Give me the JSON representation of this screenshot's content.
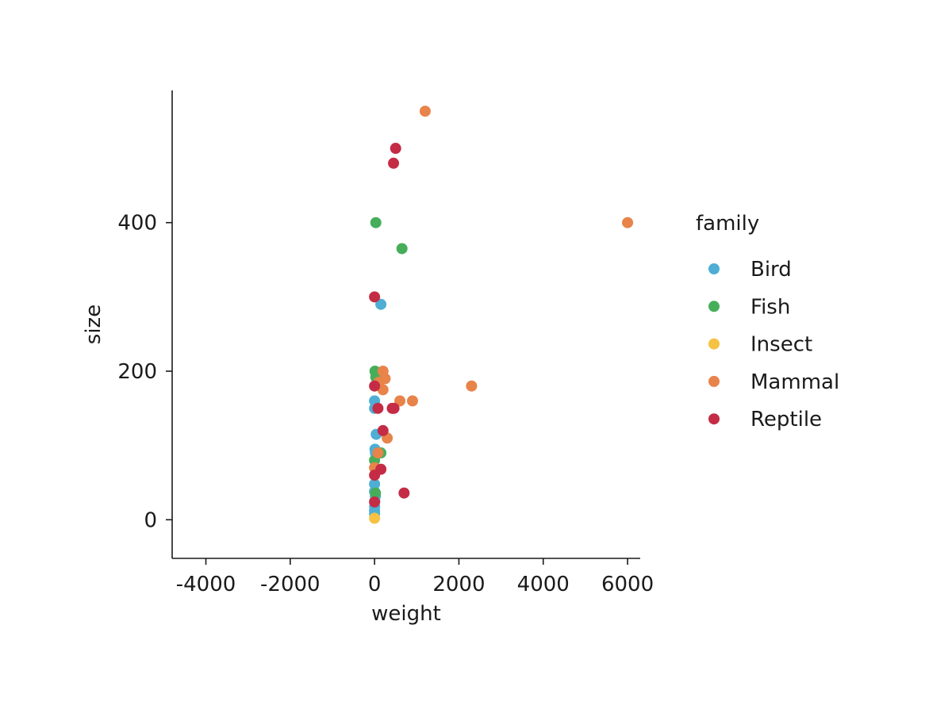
{
  "chart_data": {
    "type": "scatter",
    "title": "",
    "xlabel": "weight",
    "ylabel": "size",
    "xlim": [
      -4800,
      6300
    ],
    "ylim": [
      -52,
      578
    ],
    "xticks": [
      -4000,
      -2000,
      0,
      2000,
      4000,
      6000
    ],
    "xtick_labels": [
      "-4000",
      "-2000",
      "0",
      "2000",
      "4000",
      "6000"
    ],
    "yticks": [
      0,
      200,
      400
    ],
    "ytick_labels": [
      "0",
      "200",
      "400"
    ],
    "grid": false,
    "legend_position": "right",
    "legend_title": "family",
    "series": [
      {
        "name": "Bird",
        "color": "#4eaed4",
        "points": [
          {
            "x": 150,
            "y": 290
          },
          {
            "x": 0,
            "y": 160
          },
          {
            "x": 0,
            "y": 150
          },
          {
            "x": 40,
            "y": 115
          },
          {
            "x": 10,
            "y": 95
          },
          {
            "x": 20,
            "y": 90
          },
          {
            "x": 0,
            "y": 48
          },
          {
            "x": 0,
            "y": 38
          },
          {
            "x": 20,
            "y": 32
          },
          {
            "x": 5,
            "y": 25
          },
          {
            "x": 2,
            "y": 18
          },
          {
            "x": 0,
            "y": 12
          },
          {
            "x": 1,
            "y": 8
          }
        ]
      },
      {
        "name": "Fish",
        "color": "#46ae5a",
        "points": [
          {
            "x": 30,
            "y": 400
          },
          {
            "x": 650,
            "y": 365
          },
          {
            "x": 10,
            "y": 200
          },
          {
            "x": 30,
            "y": 192
          },
          {
            "x": 150,
            "y": 90
          },
          {
            "x": 0,
            "y": 80
          },
          {
            "x": 20,
            "y": 36
          }
        ]
      },
      {
        "name": "Insect",
        "color": "#f5c242",
        "points": [
          {
            "x": 0,
            "y": 2
          }
        ]
      },
      {
        "name": "Mammal",
        "color": "#e8834a",
        "points": [
          {
            "x": 1200,
            "y": 550
          },
          {
            "x": 6000,
            "y": 400
          },
          {
            "x": 2300,
            "y": 180
          },
          {
            "x": 200,
            "y": 200
          },
          {
            "x": 250,
            "y": 190
          },
          {
            "x": 100,
            "y": 185
          },
          {
            "x": 200,
            "y": 175
          },
          {
            "x": 600,
            "y": 160
          },
          {
            "x": 900,
            "y": 160
          },
          {
            "x": 300,
            "y": 110
          },
          {
            "x": 80,
            "y": 90
          },
          {
            "x": 0,
            "y": 70
          }
        ]
      },
      {
        "name": "Reptile",
        "color": "#c42c45",
        "points": [
          {
            "x": 500,
            "y": 500
          },
          {
            "x": 450,
            "y": 480
          },
          {
            "x": 0,
            "y": 300
          },
          {
            "x": 0,
            "y": 180
          },
          {
            "x": 80,
            "y": 150
          },
          {
            "x": 420,
            "y": 150
          },
          {
            "x": 460,
            "y": 150
          },
          {
            "x": 200,
            "y": 120
          },
          {
            "x": 150,
            "y": 68
          },
          {
            "x": 0,
            "y": 60
          },
          {
            "x": 700,
            "y": 36
          },
          {
            "x": 0,
            "y": 24
          }
        ]
      }
    ]
  }
}
